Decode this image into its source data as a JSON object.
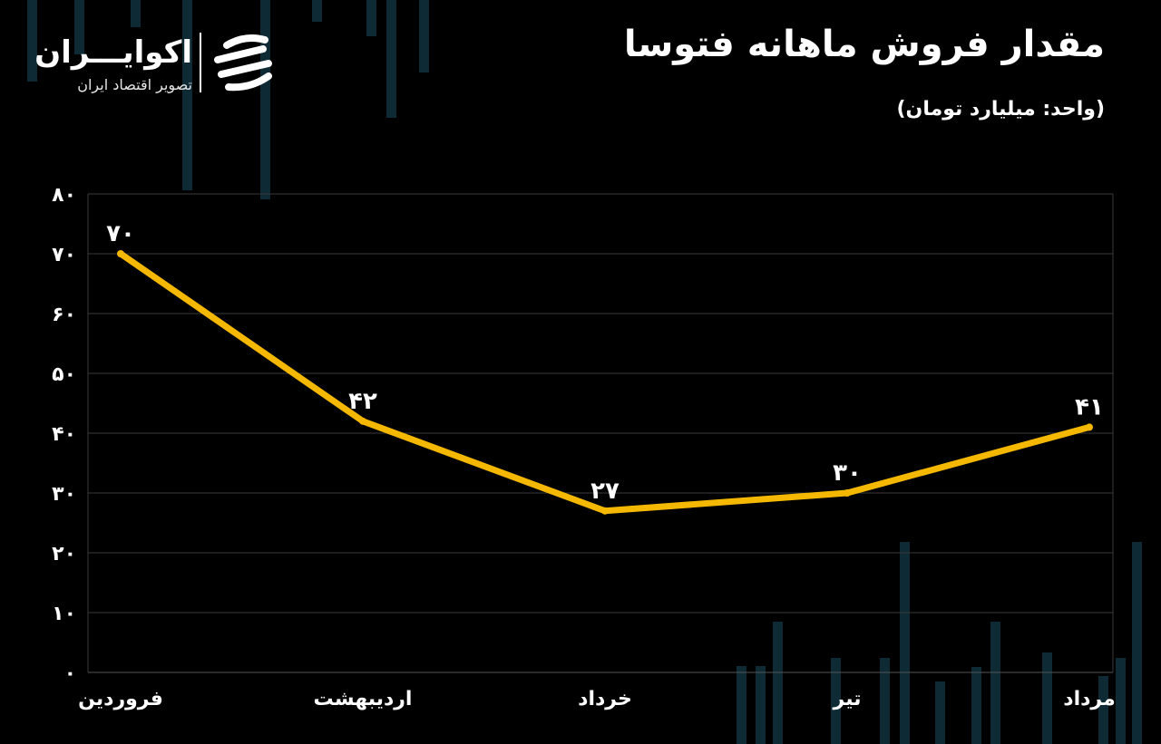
{
  "header": {
    "title": "مقدار فروش ماهانه فتوسا",
    "unit": "(واحد: میلیارد تومان)"
  },
  "brand": {
    "name": "اکوایـــران",
    "tagline": "تصویر اقتصاد ایران"
  },
  "colors": {
    "background": "#000000",
    "line": "#f5b800",
    "grid": "#3a3a3a",
    "text": "#ffffff",
    "bg_bars": "#0d2a35"
  },
  "icons": [
    "ecoiran-logo-icon"
  ],
  "chart_data": {
    "type": "line",
    "categories": [
      "فروردین",
      "اردیبهشت",
      "خرداد",
      "تیر",
      "مرداد"
    ],
    "values": [
      70,
      42,
      27,
      30,
      41
    ],
    "value_labels": [
      "۷۰",
      "۴۲",
      "۲۷",
      "۳۰",
      "۴۱"
    ],
    "yticks": [
      0,
      10,
      20,
      30,
      40,
      50,
      60,
      70,
      80
    ],
    "ytick_labels": [
      "۰",
      "۱۰",
      "۲۰",
      "۳۰",
      "۴۰",
      "۵۰",
      "۶۰",
      "۷۰",
      "۸۰"
    ],
    "ylim": [
      0,
      80
    ],
    "grid": true,
    "legend": "none"
  }
}
